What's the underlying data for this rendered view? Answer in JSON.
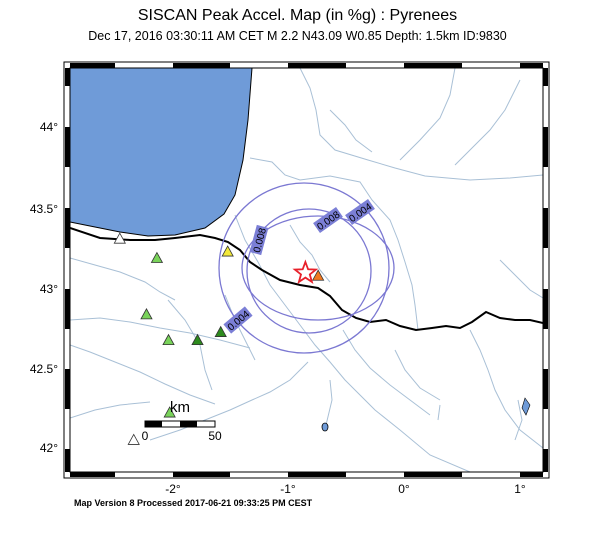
{
  "header": {
    "title": "SISCAN Peak Accel. Map (in %g) : Pyrenees",
    "subtitle": "Dec 17, 2016 03:30:11 AM CET   M 2.2   N43.09 W0.85   Depth: 1.5km   ID:9830"
  },
  "footer": {
    "text": "Map Version 8 Processed 2017-06-21 09:33:25 PM CEST"
  },
  "axes": {
    "lat_ticks": [
      "44°",
      "43.5°",
      "43°",
      "42.5°",
      "42°"
    ],
    "lon_ticks": [
      "-2°",
      "-1°",
      "0°",
      "1°"
    ]
  },
  "contours": {
    "labels": [
      "0.004",
      "0.008",
      "0.008",
      "0.004"
    ]
  },
  "scale_bar": {
    "title": "km",
    "start": "0",
    "end": "50"
  },
  "epicenter": {
    "lat": 43.09,
    "lon": -0.85,
    "symbol": "star-icon",
    "color": "#e8202a"
  },
  "colors": {
    "sea": "#6f9bd8",
    "land": "#ffffff",
    "rivers": "#a9c0d6",
    "contours": "#7b78d2",
    "label_bg": "#7b7fd6",
    "border": "#000000"
  },
  "stations": [
    {
      "lat": 43.3,
      "lon": -2.45,
      "color": "#ffffff"
    },
    {
      "lat": 43.18,
      "lon": -2.13,
      "color": "#79d35a"
    },
    {
      "lat": 43.22,
      "lon": -1.52,
      "color": "#f2e83a"
    },
    {
      "lat": 42.83,
      "lon": -2.22,
      "color": "#79d35a"
    },
    {
      "lat": 42.67,
      "lon": -2.03,
      "color": "#79d35a"
    },
    {
      "lat": 42.67,
      "lon": -1.78,
      "color": "#2e8b1e"
    },
    {
      "lat": 42.72,
      "lon": -1.58,
      "color": "#2e8b1e"
    },
    {
      "lat": 43.07,
      "lon": -0.74,
      "color": "#f07820"
    },
    {
      "lat": 42.22,
      "lon": -2.02,
      "color": "#79d35a"
    },
    {
      "lat": 42.05,
      "lon": -2.33,
      "color": "#ffffff"
    }
  ]
}
